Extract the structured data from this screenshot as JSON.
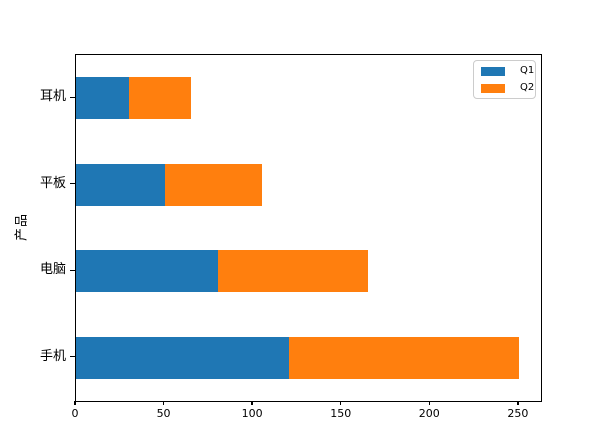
{
  "figure": {
    "background": "#ffffff"
  },
  "chart_data": {
    "type": "bar",
    "orientation": "horizontal",
    "stacked": true,
    "title": "",
    "xlabel": "",
    "ylabel": "产品",
    "categories": [
      "耳机",
      "平板",
      "电脑",
      "手机"
    ],
    "series": [
      {
        "name": "Q1",
        "color": "#1f77b4",
        "values": [
          30,
          50,
          80,
          120
        ]
      },
      {
        "name": "Q2",
        "color": "#ff7f0e",
        "values": [
          35,
          55,
          85,
          130
        ]
      }
    ],
    "totals": [
      65,
      105,
      165,
      250
    ],
    "xlim": [
      0,
      262.5
    ],
    "xticks": [
      0,
      50,
      100,
      150,
      200,
      250
    ],
    "grid": false,
    "legend_position": "upper right"
  }
}
